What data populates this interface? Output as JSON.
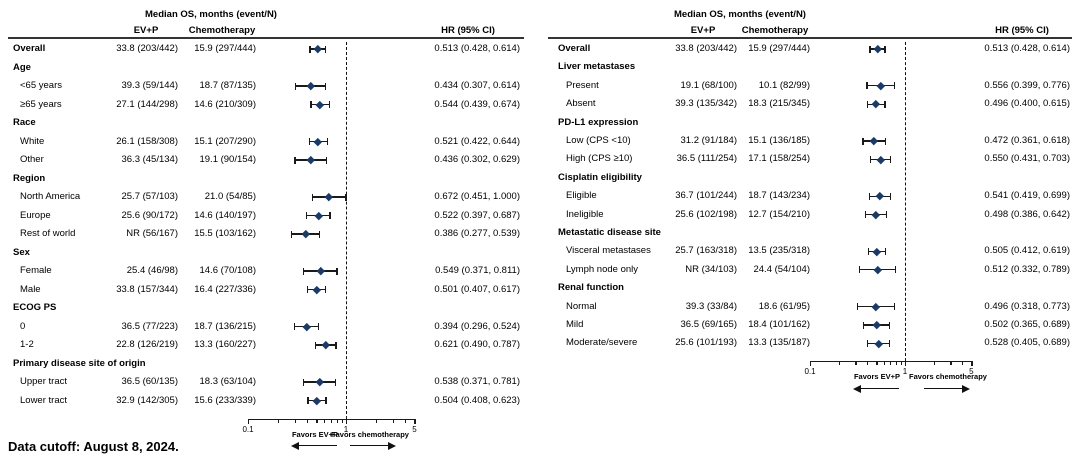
{
  "figure": {
    "footnote": "Data cutoff: August 8, 2024."
  },
  "chart_data": [
    {
      "type": "forest",
      "col_group_header": "Median OS, months (event/N)",
      "columns": [
        "EV+P",
        "Chemotherapy"
      ],
      "hr_header": "HR (95% CI)",
      "axis": {
        "scale": "log",
        "ticks": [
          0.1,
          1,
          5
        ],
        "tick_labels": [
          "0.1",
          "1",
          "5"
        ],
        "minor_ticks": [
          0.2,
          0.3,
          0.4,
          0.5,
          0.6,
          0.7,
          0.8,
          0.9,
          2,
          3,
          4
        ],
        "ref_line": 1
      },
      "favors_left": "Favors EV+P",
      "favors_right": "Favors chemotherapy",
      "marker_color": "#1b3a68",
      "rows": [
        {
          "label": "Overall",
          "bold": true,
          "ev": "33.8 (203/442)",
          "chemo": "15.9 (297/444)",
          "hr": 0.513,
          "ci_low": 0.428,
          "ci_high": 0.614,
          "hr_text": "0.513 (0.428, 0.614)"
        },
        {
          "label": "Age",
          "bold": true,
          "header": true
        },
        {
          "label": "<65 years",
          "indent": true,
          "ev": "39.3 (59/144)",
          "chemo": "18.7 (87/135)",
          "hr": 0.434,
          "ci_low": 0.307,
          "ci_high": 0.614,
          "hr_text": "0.434 (0.307, 0.614)"
        },
        {
          "label": "≥65 years",
          "indent": true,
          "ev": "27.1 (144/298)",
          "chemo": "14.6 (210/309)",
          "hr": 0.544,
          "ci_low": 0.439,
          "ci_high": 0.674,
          "hr_text": "0.544 (0.439, 0.674)"
        },
        {
          "label": "Race",
          "bold": true,
          "header": true
        },
        {
          "label": "White",
          "indent": true,
          "ev": "26.1 (158/308)",
          "chemo": "15.1 (207/290)",
          "hr": 0.521,
          "ci_low": 0.422,
          "ci_high": 0.644,
          "hr_text": "0.521 (0.422, 0.644)"
        },
        {
          "label": "Other",
          "indent": true,
          "ev": "36.3 (45/134)",
          "chemo": "19.1 (90/154)",
          "hr": 0.436,
          "ci_low": 0.302,
          "ci_high": 0.629,
          "hr_text": "0.436 (0.302, 0.629)"
        },
        {
          "label": "Region",
          "bold": true,
          "header": true
        },
        {
          "label": "North America",
          "indent": true,
          "ev": "25.7 (57/103)",
          "chemo": "21.0 (54/85)",
          "hr": 0.672,
          "ci_low": 0.451,
          "ci_high": 1.0,
          "hr_text": "0.672 (0.451, 1.000)"
        },
        {
          "label": "Europe",
          "indent": true,
          "ev": "25.6 (90/172)",
          "chemo": "14.6 (140/197)",
          "hr": 0.522,
          "ci_low": 0.397,
          "ci_high": 0.687,
          "hr_text": "0.522 (0.397, 0.687)"
        },
        {
          "label": "Rest of world",
          "indent": true,
          "ev": "NR (56/167)",
          "chemo": "15.5 (103/162)",
          "hr": 0.386,
          "ci_low": 0.277,
          "ci_high": 0.539,
          "hr_text": "0.386 (0.277, 0.539)"
        },
        {
          "label": "Sex",
          "bold": true,
          "header": true
        },
        {
          "label": "Female",
          "indent": true,
          "ev": "25.4 (46/98)",
          "chemo": "14.6 (70/108)",
          "hr": 0.549,
          "ci_low": 0.371,
          "ci_high": 0.811,
          "hr_text": "0.549 (0.371, 0.811)"
        },
        {
          "label": "Male",
          "indent": true,
          "ev": "33.8 (157/344)",
          "chemo": "16.4 (227/336)",
          "hr": 0.501,
          "ci_low": 0.407,
          "ci_high": 0.617,
          "hr_text": "0.501 (0.407, 0.617)"
        },
        {
          "label": "ECOG PS",
          "bold": true,
          "header": true
        },
        {
          "label": "0",
          "indent": true,
          "ev": "36.5 (77/223)",
          "chemo": "18.7 (136/215)",
          "hr": 0.394,
          "ci_low": 0.296,
          "ci_high": 0.524,
          "hr_text": "0.394 (0.296, 0.524)"
        },
        {
          "label": "1-2",
          "indent": true,
          "ev": "22.8 (126/219)",
          "chemo": "13.3 (160/227)",
          "hr": 0.621,
          "ci_low": 0.49,
          "ci_high": 0.787,
          "hr_text": "0.621 (0.490, 0.787)"
        },
        {
          "label": "Primary disease site of origin",
          "bold": true,
          "header": true
        },
        {
          "label": "Upper tract",
          "indent": true,
          "ev": "36.5 (60/135)",
          "chemo": "18.3 (63/104)",
          "hr": 0.538,
          "ci_low": 0.371,
          "ci_high": 0.781,
          "hr_text": "0.538 (0.371, 0.781)"
        },
        {
          "label": "Lower tract",
          "indent": true,
          "ev": "32.9 (142/305)",
          "chemo": "15.6 (233/339)",
          "hr": 0.504,
          "ci_low": 0.408,
          "ci_high": 0.623,
          "hr_text": "0.504 (0.408, 0.623)"
        }
      ]
    },
    {
      "type": "forest",
      "col_group_header": "Median OS, months (event/N)",
      "columns": [
        "EV+P",
        "Chemotherapy"
      ],
      "hr_header": "HR (95% CI)",
      "axis": {
        "scale": "log",
        "ticks": [
          0.1,
          1,
          5
        ],
        "tick_labels": [
          "0.1",
          "1",
          "5"
        ],
        "minor_ticks": [
          0.2,
          0.3,
          0.4,
          0.5,
          0.6,
          0.7,
          0.8,
          0.9,
          2,
          3,
          4
        ],
        "ref_line": 1
      },
      "favors_left": "Favors EV+P",
      "favors_right": "Favors chemotherapy",
      "marker_color": "#1b3a68",
      "rows": [
        {
          "label": "Overall",
          "bold": true,
          "ev": "33.8 (203/442)",
          "chemo": "15.9 (297/444)",
          "hr": 0.513,
          "ci_low": 0.428,
          "ci_high": 0.614,
          "hr_text": "0.513 (0.428, 0.614)"
        },
        {
          "label": "Liver metastases",
          "bold": true,
          "header": true
        },
        {
          "label": "Present",
          "indent": true,
          "ev": "19.1 (68/100)",
          "chemo": "10.1 (82/99)",
          "hr": 0.556,
          "ci_low": 0.399,
          "ci_high": 0.776,
          "hr_text": "0.556 (0.399, 0.776)"
        },
        {
          "label": "Absent",
          "indent": true,
          "ev": "39.3 (135/342)",
          "chemo": "18.3 (215/345)",
          "hr": 0.496,
          "ci_low": 0.4,
          "ci_high": 0.615,
          "hr_text": "0.496 (0.400, 0.615)"
        },
        {
          "label": "PD-L1 expression",
          "bold": true,
          "header": true
        },
        {
          "label": "Low (CPS <10)",
          "indent": true,
          "ev": "31.2 (91/184)",
          "chemo": "15.1 (136/185)",
          "hr": 0.472,
          "ci_low": 0.361,
          "ci_high": 0.618,
          "hr_text": "0.472 (0.361, 0.618)"
        },
        {
          "label": "High (CPS ≥10)",
          "indent": true,
          "ev": "36.5 (111/254)",
          "chemo": "17.1 (158/254)",
          "hr": 0.55,
          "ci_low": 0.431,
          "ci_high": 0.703,
          "hr_text": "0.550 (0.431, 0.703)"
        },
        {
          "label": "Cisplatin eligibility",
          "bold": true,
          "header": true
        },
        {
          "label": "Eligible",
          "indent": true,
          "ev": "36.7 (101/244)",
          "chemo": "18.7 (143/234)",
          "hr": 0.541,
          "ci_low": 0.419,
          "ci_high": 0.699,
          "hr_text": "0.541 (0.419, 0.699)"
        },
        {
          "label": "Ineligible",
          "indent": true,
          "ev": "25.6 (102/198)",
          "chemo": "12.7 (154/210)",
          "hr": 0.498,
          "ci_low": 0.386,
          "ci_high": 0.642,
          "hr_text": "0.498 (0.386, 0.642)"
        },
        {
          "label": "Metastatic disease site",
          "bold": true,
          "header": true
        },
        {
          "label": "Visceral metastases",
          "indent": true,
          "ev": "25.7 (163/318)",
          "chemo": "13.5 (235/318)",
          "hr": 0.505,
          "ci_low": 0.412,
          "ci_high": 0.619,
          "hr_text": "0.505 (0.412, 0.619)"
        },
        {
          "label": "Lymph node only",
          "indent": true,
          "ev": "NR (34/103)",
          "chemo": "24.4 (54/104)",
          "hr": 0.512,
          "ci_low": 0.332,
          "ci_high": 0.789,
          "hr_text": "0.512 (0.332, 0.789)"
        },
        {
          "label": "Renal function",
          "bold": true,
          "header": true
        },
        {
          "label": "Normal",
          "indent": true,
          "ev": "39.3 (33/84)",
          "chemo": "18.6 (61/95)",
          "hr": 0.496,
          "ci_low": 0.318,
          "ci_high": 0.773,
          "hr_text": "0.496 (0.318, 0.773)"
        },
        {
          "label": "Mild",
          "indent": true,
          "ev": "36.5 (69/165)",
          "chemo": "18.4 (101/162)",
          "hr": 0.502,
          "ci_low": 0.365,
          "ci_high": 0.689,
          "hr_text": "0.502 (0.365, 0.689)"
        },
        {
          "label": "Moderate/severe",
          "indent": true,
          "ev": "25.6 (101/193)",
          "chemo": "13.3 (135/187)",
          "hr": 0.528,
          "ci_low": 0.405,
          "ci_high": 0.689,
          "hr_text": "0.528 (0.405, 0.689)"
        }
      ]
    }
  ]
}
